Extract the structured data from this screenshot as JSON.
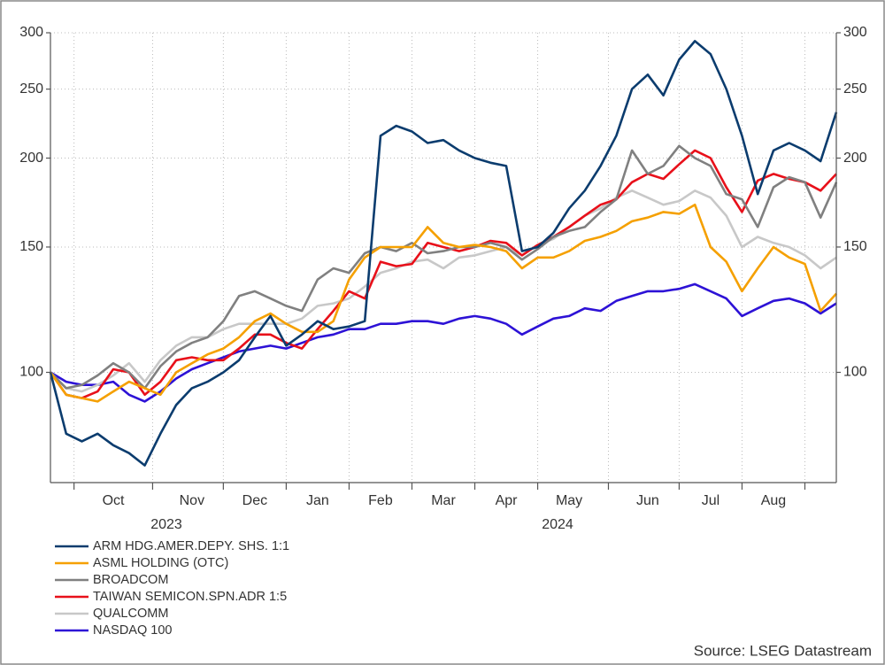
{
  "chart_data": {
    "type": "line",
    "categories": [
      null,
      null,
      null,
      null,
      "Oct",
      null,
      null,
      null,
      null,
      "Nov",
      null,
      null,
      null,
      "Dec",
      null,
      null,
      null,
      "Jan",
      null,
      null,
      null,
      "Feb",
      null,
      null,
      null,
      "Mar",
      null,
      null,
      null,
      "Apr",
      null,
      null,
      null,
      "May",
      null,
      null,
      null,
      null,
      "Jun",
      null,
      null,
      null,
      "Jul",
      null,
      null,
      null,
      "Aug",
      null,
      null,
      null,
      null
    ],
    "years": [
      "2023",
      "2024"
    ],
    "log_scale": true,
    "grid": true,
    "ylim": [
      70,
      300
    ],
    "yticks": [
      100,
      150,
      200,
      250,
      300
    ],
    "series": [
      {
        "name": "ARM HDG.AMER.DEPY. SHS. 1:1",
        "color": "#0b3c6e",
        "values": [
          100,
          82,
          80,
          82,
          79,
          77,
          74,
          82,
          90,
          95,
          97,
          100,
          104,
          112,
          120,
          109,
          113,
          118,
          115,
          116,
          118,
          215,
          222,
          218,
          210,
          212,
          205,
          200,
          197,
          195,
          148,
          150,
          157,
          170,
          180,
          195,
          215,
          250,
          262,
          245,
          275,
          292,
          280,
          250,
          215,
          178,
          205,
          210,
          205,
          198,
          232
        ]
      },
      {
        "name": "ASML HOLDING (OTC)",
        "color": "#f5a000",
        "values": [
          100,
          93,
          92,
          91,
          94,
          97,
          95,
          93,
          100,
          103,
          106,
          108,
          112,
          118,
          121,
          117,
          114,
          114,
          118,
          135,
          145,
          150,
          150,
          150,
          160,
          152,
          150,
          151,
          150,
          148,
          140,
          145,
          145,
          148,
          153,
          155,
          158,
          163,
          165,
          168,
          167,
          172,
          150,
          143,
          130,
          140,
          150,
          145,
          142,
          122,
          129
        ]
      },
      {
        "name": "BROADCOM",
        "color": "#808080",
        "values": [
          100,
          95,
          96,
          99,
          103,
          100,
          95,
          102,
          107,
          110,
          112,
          118,
          128,
          130,
          127,
          124,
          122,
          135,
          140,
          138,
          147,
          150,
          148,
          152,
          147,
          148,
          150,
          150,
          152,
          150,
          144,
          149,
          155,
          158,
          160,
          168,
          175,
          205,
          190,
          195,
          208,
          200,
          195,
          178,
          175,
          160,
          182,
          188,
          185,
          165,
          185
        ]
      },
      {
        "name": "TAIWAN SEMICON.SPN.ADR 1:5",
        "color": "#e8101a",
        "values": [
          100,
          93,
          92,
          94,
          101,
          100,
          93,
          97,
          104,
          105,
          104,
          104,
          108,
          113,
          113,
          110,
          108,
          115,
          122,
          130,
          127,
          143,
          141,
          142,
          152,
          150,
          148,
          150,
          153,
          152,
          146,
          151,
          155,
          160,
          166,
          172,
          175,
          185,
          190,
          187,
          196,
          205,
          200,
          182,
          168,
          186,
          190,
          187,
          185,
          180,
          190
        ]
      },
      {
        "name": "QUALCOMM",
        "color": "#c8c8c8",
        "values": [
          100,
          95,
          94,
          96,
          99,
          103,
          97,
          104,
          109,
          112,
          112,
          115,
          117,
          117,
          117,
          117,
          119,
          124,
          125,
          127,
          132,
          138,
          140,
          143,
          144,
          140,
          145,
          146,
          148,
          150,
          146,
          151,
          154,
          160,
          166,
          170,
          176,
          180,
          176,
          172,
          174,
          180,
          176,
          166,
          150,
          155,
          152,
          150,
          146,
          140,
          145
        ]
      },
      {
        "name": "NASDAQ 100",
        "color": "#2d12d6",
        "values": [
          100,
          97,
          96,
          96,
          97,
          93,
          91,
          94,
          98,
          101,
          103,
          105,
          107,
          108,
          109,
          108,
          110,
          112,
          113,
          115,
          115,
          117,
          117,
          118,
          118,
          117,
          119,
          120,
          119,
          117,
          113,
          116,
          119,
          120,
          123,
          122,
          126,
          128,
          130,
          130,
          131,
          133,
          130,
          127,
          120,
          123,
          126,
          127,
          125,
          121,
          125
        ]
      }
    ],
    "source": "Source: LSEG Datastream"
  }
}
